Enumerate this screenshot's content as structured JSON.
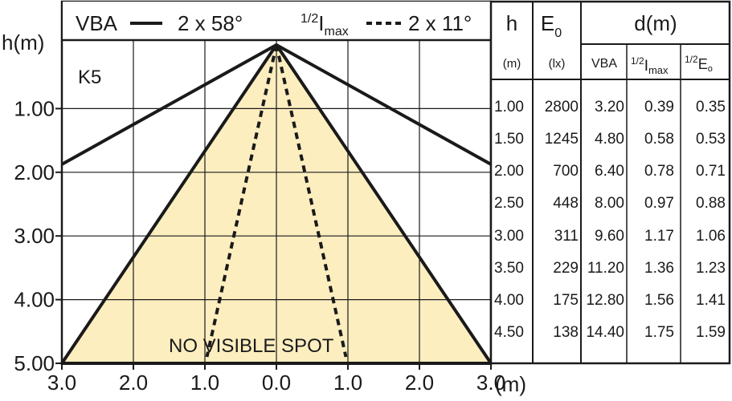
{
  "chart_data": {
    "type": "beam-spread-diagram",
    "y_axis_label": "h(m)",
    "x_axis_label": "(m)",
    "y_ticks": [
      "1.00",
      "2.00",
      "3.00",
      "4.00",
      "5.00"
    ],
    "x_ticks": [
      "3.0",
      "2.0",
      "1.0",
      "0.0",
      "1.0",
      "2.0",
      "3.0"
    ],
    "x_range": [
      -3.0,
      3.0
    ],
    "y_range": [
      0,
      5.0
    ],
    "legend": {
      "vba_label": "VBA",
      "vba_angle": "2 x 58°",
      "half_imax_frac": "1/2",
      "half_imax_i": "I",
      "half_imax_sub": "max",
      "half_imax_angle": "2 x 11°"
    },
    "model": "K5",
    "note": "NO VISIBLE SPOT",
    "vba_half_angle_deg": 58,
    "half_imax_half_angle_deg": 11,
    "fill_color": "#fdeec0",
    "line_color": "#1a1a1a"
  },
  "table": {
    "h_header": "h",
    "e0_header": "E",
    "e0_sub": "0",
    "d_header": "d(m)",
    "h_unit": "(m)",
    "e0_unit": "(lx)",
    "vba_col": "VBA",
    "imax_col_frac": "1/2",
    "imax_col_i": "I",
    "imax_col_sub": "max",
    "e0_col_frac": "1/2",
    "e0_col_e": "E",
    "e0_col_sub": "o",
    "rows": [
      {
        "h": "1.00",
        "e0": "2800",
        "vba": "3.20",
        "imax": "0.39",
        "e0half": "0.35"
      },
      {
        "h": "1.50",
        "e0": "1245",
        "vba": "4.80",
        "imax": "0.58",
        "e0half": "0.53"
      },
      {
        "h": "2.00",
        "e0": "700",
        "vba": "6.40",
        "imax": "0.78",
        "e0half": "0.71"
      },
      {
        "h": "2.50",
        "e0": "448",
        "vba": "8.00",
        "imax": "0.97",
        "e0half": "0.88"
      },
      {
        "h": "3.00",
        "e0": "311",
        "vba": "9.60",
        "imax": "1.17",
        "e0half": "1.06"
      },
      {
        "h": "3.50",
        "e0": "229",
        "vba": "11.20",
        "imax": "1.36",
        "e0half": "1.23"
      },
      {
        "h": "4.00",
        "e0": "175",
        "vba": "12.80",
        "imax": "1.56",
        "e0half": "1.41"
      },
      {
        "h": "4.50",
        "e0": "138",
        "vba": "14.40",
        "imax": "1.75",
        "e0half": "1.59"
      }
    ]
  }
}
